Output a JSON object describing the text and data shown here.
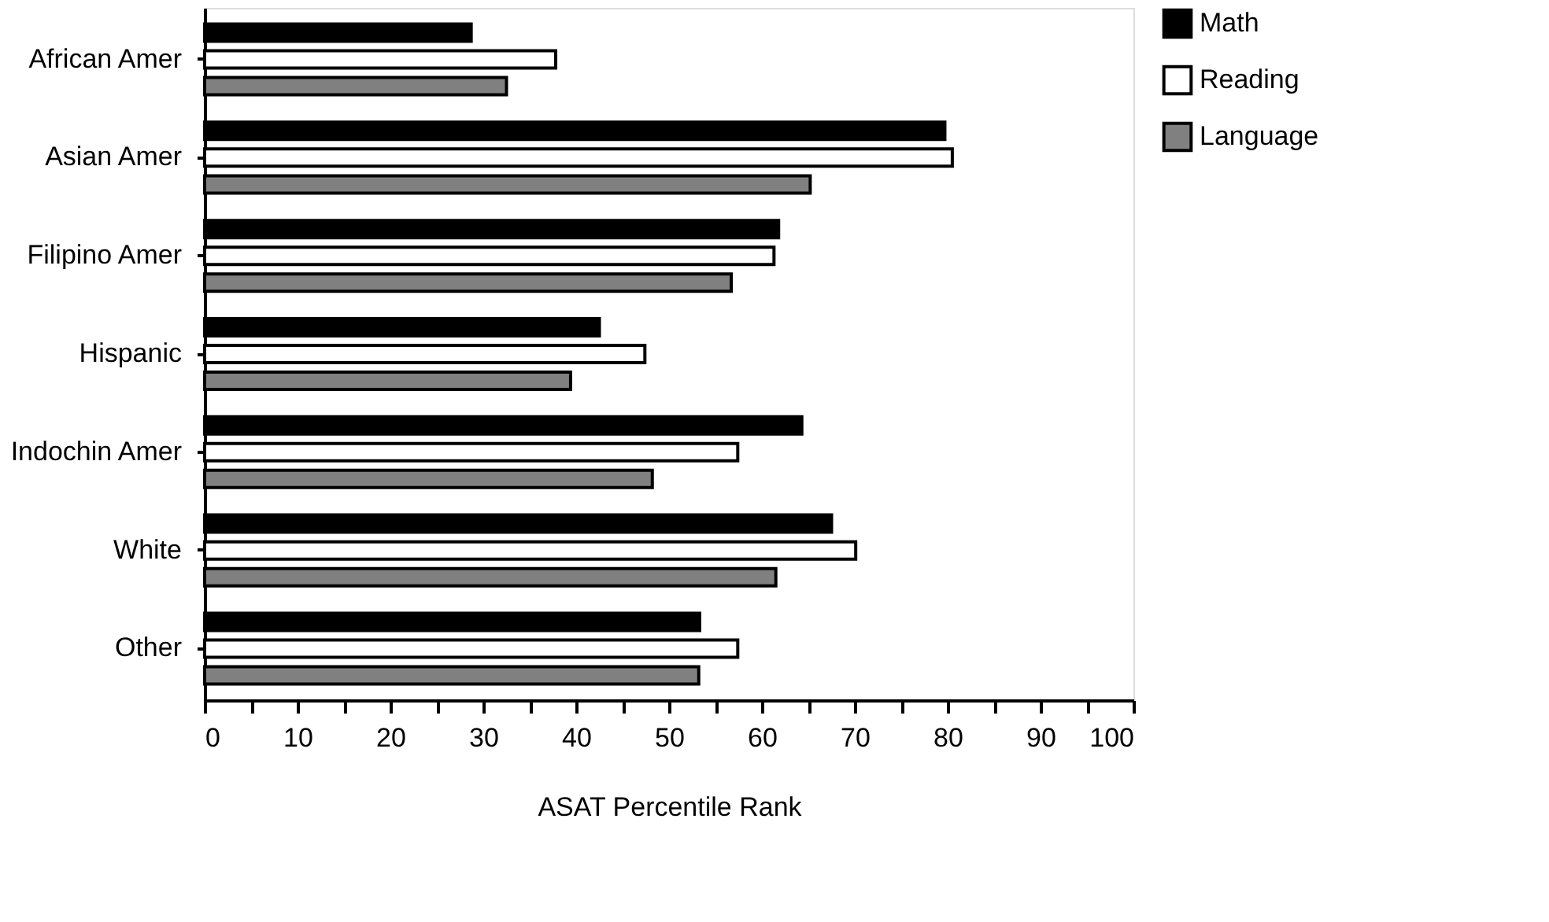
{
  "chart_data": {
    "type": "bar",
    "orientation": "horizontal",
    "xlabel": "ASAT Percentile Rank",
    "categories": [
      "African Amer",
      "Asian Amer",
      "Filipino Amer",
      "Hispanic",
      "Indochin Amer",
      "White",
      "Other"
    ],
    "series": [
      {
        "name": "Math",
        "color": "#000000",
        "values": [
          28.7,
          79.7,
          61.8,
          42.5,
          64.3,
          67.5,
          53.3
        ]
      },
      {
        "name": "Reading",
        "color": "#ffffff",
        "values": [
          37.8,
          80.5,
          61.3,
          47.4,
          57.4,
          70.1,
          57.4
        ]
      },
      {
        "name": "Language",
        "color": "#808080",
        "values": [
          32.5,
          65.2,
          56.7,
          39.4,
          48.2,
          61.5,
          53.2
        ]
      }
    ],
    "xlim": [
      0,
      100
    ],
    "xticks": [
      0,
      {
        "value": 5,
        "label": null
      },
      10,
      {
        "value": 15,
        "label": null
      },
      20,
      {
        "value": 25,
        "label": null
      },
      30,
      {
        "value": 35,
        "label": null
      },
      40,
      {
        "value": 45,
        "label": null
      },
      50,
      {
        "value": 55,
        "label": null
      },
      60,
      {
        "value": 65,
        "label": null
      },
      70,
      {
        "value": 75,
        "label": null
      },
      80,
      {
        "value": 85,
        "label": null
      },
      90,
      {
        "value": 95,
        "label": null
      },
      100
    ],
    "grid": false,
    "legend": "right"
  }
}
